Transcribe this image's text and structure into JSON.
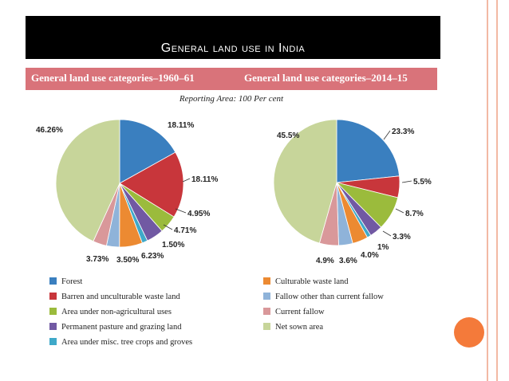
{
  "slide": {
    "title": "General land use in India",
    "band_left": "General land use categories–1960–61",
    "band_right": "General land use categories–2014–15",
    "subtitle": "Reporting Area: 100 Per cent"
  },
  "colors": {
    "forest": "#3a7fbf",
    "barren": "#c8363b",
    "non_agri": "#9bbb3c",
    "pasture": "#7159a3",
    "tree_crops": "#3fa9c9",
    "culturable_waste": "#ec8a32",
    "fallow_other": "#8fb3d9",
    "current_fallow": "#d9989a",
    "net_sown": "#c7d59a"
  },
  "chart_data": [
    {
      "type": "pie",
      "title": "General land use categories–1960–61",
      "slices": [
        {
          "key": "forest",
          "value": 18.11,
          "label": "18.11%"
        },
        {
          "key": "barren",
          "value": 18.11,
          "label": "18.11%"
        },
        {
          "key": "non_agri",
          "value": 4.95,
          "label": "4.95%"
        },
        {
          "key": "pasture",
          "value": 4.71,
          "label": "4.71%"
        },
        {
          "key": "tree_crops",
          "value": 1.5,
          "label": "1.50%"
        },
        {
          "key": "culturable_waste",
          "value": 6.23,
          "label": "6.23%"
        },
        {
          "key": "fallow_other",
          "value": 3.5,
          "label": "3.50%"
        },
        {
          "key": "current_fallow",
          "value": 3.73,
          "label": "3.73%"
        },
        {
          "key": "net_sown",
          "value": 46.26,
          "label": "46.26%"
        }
      ]
    },
    {
      "type": "pie",
      "title": "General land use categories–2014–15",
      "slices": [
        {
          "key": "forest",
          "value": 23.3,
          "label": "23.3%"
        },
        {
          "key": "barren",
          "value": 5.5,
          "label": "5.5%"
        },
        {
          "key": "non_agri",
          "value": 8.7,
          "label": "8.7%"
        },
        {
          "key": "pasture",
          "value": 3.3,
          "label": "3.3%"
        },
        {
          "key": "tree_crops",
          "value": 1,
          "label": "1%"
        },
        {
          "key": "culturable_waste",
          "value": 4.0,
          "label": "4.0%"
        },
        {
          "key": "fallow_other",
          "value": 3.6,
          "label": "3.6%"
        },
        {
          "key": "current_fallow",
          "value": 4.9,
          "label": "4.9%"
        },
        {
          "key": "net_sown",
          "value": 45.5,
          "label": "45.5%"
        }
      ]
    }
  ],
  "legend": [
    {
      "key": "forest",
      "label": "Forest"
    },
    {
      "key": "barren",
      "label": "Barren and unculturable waste land"
    },
    {
      "key": "non_agri",
      "label": "Area under non-agricultural uses"
    },
    {
      "key": "pasture",
      "label": "Permanent pasture and grazing land"
    },
    {
      "key": "tree_crops",
      "label": "Area under misc. tree crops and groves"
    },
    {
      "key": "culturable_waste",
      "label": "Culturable waste land"
    },
    {
      "key": "fallow_other",
      "label": "Fallow other than current fallow"
    },
    {
      "key": "current_fallow",
      "label": "Current fallow"
    },
    {
      "key": "net_sown",
      "label": "Net sown area"
    }
  ]
}
